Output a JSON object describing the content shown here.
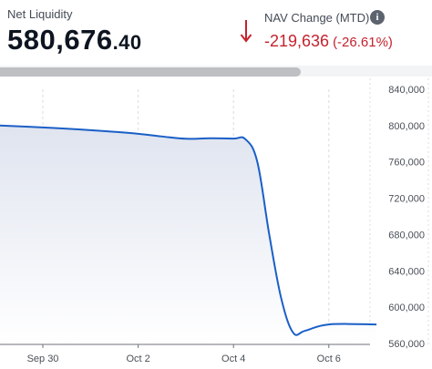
{
  "account": {
    "net_liquidity_label": "Net Liquidity",
    "net_liquidity_int": "580,676",
    "net_liquidity_dec": ".40"
  },
  "nav_change": {
    "label": "NAV Change (MTD)",
    "value": "-219,636",
    "percent": "(-26.61%)",
    "direction_icon": "down-arrow-icon",
    "info_icon": "info-icon"
  },
  "colors": {
    "negative": "#c4232e",
    "line": "#1a5fc7",
    "fill_top": "#dfe4ef"
  },
  "chart_data": {
    "type": "area",
    "title": "",
    "xlabel": "",
    "ylabel": "",
    "x_ticks": [
      "Sep 30",
      "Oct 2",
      "Oct 4",
      "Oct 6"
    ],
    "y_ticks": [
      "840,000",
      "800,000",
      "760,000",
      "720,000",
      "680,000",
      "640,000",
      "600,000",
      "560,000"
    ],
    "ylim": [
      560000,
      840000
    ],
    "grid": "vertical dashed",
    "y_axis_side": "right",
    "series": [
      {
        "x": [
          "2024-09-29 00:00",
          "2024-09-30 00:00",
          "2024-10-01 00:00",
          "2024-10-02 00:00",
          "2024-10-02 12:00",
          "2024-10-03 00:00",
          "2024-10-03 12:00",
          "2024-10-04 00:00",
          "2024-10-04 06:00",
          "2024-10-04 12:00",
          "2024-10-04 18:00",
          "2024-10-05 00:00",
          "2024-10-05 06:00",
          "2024-10-05 12:00",
          "2024-10-06 00:00",
          "2024-10-07 00:00"
        ],
        "values": [
          800300,
          798000,
          795000,
          791000,
          788000,
          785500,
          786000,
          785700,
          785000,
          760000,
          680000,
          610000,
          572000,
          574000,
          581000,
          581000
        ]
      }
    ]
  }
}
